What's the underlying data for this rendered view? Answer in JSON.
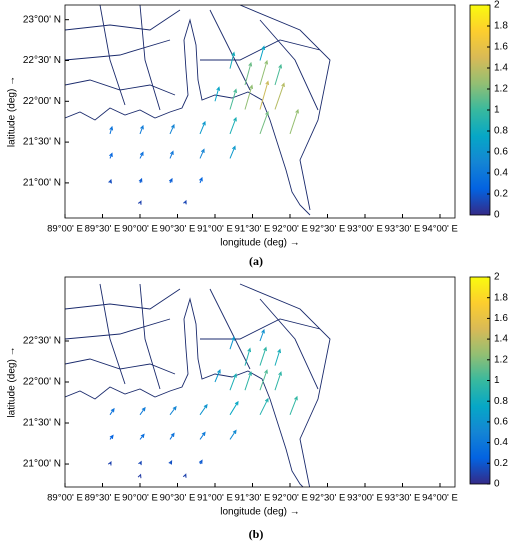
{
  "chart_data": [
    {
      "type": "quiver",
      "caption": "(a)",
      "xlabel": "longitude (deg) →",
      "ylabel": "latitude (deg) →",
      "xlim": [
        89,
        94.2
      ],
      "ylim": [
        20.57,
        23.18
      ],
      "xticks": [
        {
          "value": 89,
          "label": "89°00' E"
        },
        {
          "value": 89.5,
          "label": "89°30' E"
        },
        {
          "value": 90,
          "label": "90°00' E"
        },
        {
          "value": 90.5,
          "label": "90°30' E"
        },
        {
          "value": 91,
          "label": "91°00' E"
        },
        {
          "value": 91.5,
          "label": "91°30' E"
        },
        {
          "value": 92,
          "label": "92°00' E"
        },
        {
          "value": 92.5,
          "label": "92°30' E"
        },
        {
          "value": 93,
          "label": "93°00' E"
        },
        {
          "value": 93.5,
          "label": "93°30' E"
        },
        {
          "value": 94,
          "label": "94°00' E"
        }
      ],
      "yticks": [
        {
          "value": 21,
          "label": "21°00' N"
        },
        {
          "value": 21.5,
          "label": "21°30' N"
        },
        {
          "value": 22,
          "label": "22°00' N"
        },
        {
          "value": 22.5,
          "label": "22°30' N"
        },
        {
          "value": 23,
          "label": "23°00' N"
        }
      ],
      "clim": [
        0,
        2
      ],
      "cticks": [
        0,
        0.2,
        0.4,
        0.6,
        0.8,
        1,
        1.2,
        1.4,
        1.6,
        1.8,
        2
      ],
      "colormap": [
        "#352a87",
        "#0363e1",
        "#1485d4",
        "#06a7c6",
        "#38b99e",
        "#92bf73",
        "#d9ba56",
        "#fcce2e",
        "#f9fb0e"
      ],
      "vectors": {
        "x": [
          89.6,
          90.0,
          90.4,
          90.8,
          89.6,
          90.0,
          90.4,
          90.8,
          91.2,
          89.6,
          90.0,
          90.4,
          90.8,
          91.2,
          91.6,
          91.2,
          91.4,
          91.6,
          91.8,
          91.4,
          91.6,
          91.8,
          92.0,
          91.2,
          91.6,
          91.0,
          90.0,
          90.6
        ],
        "y": [
          21.0,
          21.0,
          21.0,
          21.0,
          21.3,
          21.3,
          21.3,
          21.3,
          21.3,
          21.6,
          21.6,
          21.6,
          21.6,
          21.6,
          21.6,
          21.9,
          21.9,
          21.9,
          21.9,
          22.2,
          22.2,
          22.2,
          21.6,
          22.4,
          22.5,
          22.0,
          20.75,
          20.75
        ],
        "u": [
          0.05,
          0.08,
          0.1,
          0.1,
          0.1,
          0.15,
          0.15,
          0.2,
          0.25,
          0.1,
          0.15,
          0.2,
          0.25,
          0.3,
          0.4,
          0.3,
          0.35,
          0.4,
          0.45,
          0.3,
          0.35,
          0.3,
          0.4,
          0.2,
          0.2,
          0.2,
          0.05,
          0.05
        ],
        "v": [
          0.15,
          0.2,
          0.2,
          0.25,
          0.25,
          0.3,
          0.35,
          0.45,
          0.6,
          0.35,
          0.4,
          0.45,
          0.6,
          0.8,
          1.1,
          1.0,
          1.2,
          1.4,
          1.3,
          1.1,
          1.2,
          1.0,
          1.2,
          0.8,
          0.7,
          0.7,
          0.1,
          0.12
        ]
      }
    },
    {
      "type": "quiver",
      "caption": "(b)",
      "xlabel": "longitude (deg) →",
      "ylabel": "latitude (deg) →",
      "xlim": [
        89,
        94.2
      ],
      "ylim": [
        20.72,
        23.28
      ],
      "xticks": [
        {
          "value": 89,
          "label": "89°00' E"
        },
        {
          "value": 89.5,
          "label": "89°30' E"
        },
        {
          "value": 90,
          "label": "90°00' E"
        },
        {
          "value": 90.5,
          "label": "90°30' E"
        },
        {
          "value": 91,
          "label": "91°00' E"
        },
        {
          "value": 91.5,
          "label": "91°30' E"
        },
        {
          "value": 92,
          "label": "92°00' E"
        },
        {
          "value": 92.5,
          "label": "92°30' E"
        },
        {
          "value": 93,
          "label": "93°00' E"
        },
        {
          "value": 93.5,
          "label": "93°30' E"
        },
        {
          "value": 94,
          "label": "94°00' E"
        }
      ],
      "yticks": [
        {
          "value": 21,
          "label": "21°00' N"
        },
        {
          "value": 21.5,
          "label": "21°30' N"
        },
        {
          "value": 22,
          "label": "22°00' N"
        },
        {
          "value": 22.5,
          "label": "22°30' N"
        }
      ],
      "clim": [
        0,
        2
      ],
      "cticks": [
        0,
        0.2,
        0.4,
        0.6,
        0.8,
        1,
        1.2,
        1.4,
        1.6,
        1.8,
        2
      ],
      "colormap": [
        "#352a87",
        "#0363e1",
        "#1485d4",
        "#06a7c6",
        "#38b99e",
        "#92bf73",
        "#d9ba56",
        "#fcce2e",
        "#f9fb0e"
      ],
      "vectors": {
        "x": [
          89.6,
          90.0,
          90.4,
          90.8,
          89.6,
          90.0,
          90.4,
          90.8,
          91.2,
          89.6,
          90.0,
          90.4,
          90.8,
          91.2,
          91.6,
          91.2,
          91.4,
          91.6,
          91.8,
          91.4,
          91.6,
          91.8,
          92.0,
          91.2,
          91.6,
          91.0,
          90.0,
          90.6
        ],
        "y": [
          21.0,
          21.0,
          21.0,
          21.0,
          21.3,
          21.3,
          21.3,
          21.3,
          21.3,
          21.6,
          21.6,
          21.6,
          21.6,
          21.6,
          21.6,
          21.9,
          21.9,
          21.9,
          21.9,
          22.2,
          22.2,
          22.2,
          21.6,
          22.4,
          22.5,
          22.0,
          20.85,
          20.85
        ],
        "u": [
          0.05,
          0.06,
          0.08,
          0.1,
          0.15,
          0.2,
          0.2,
          0.25,
          0.3,
          0.2,
          0.25,
          0.3,
          0.35,
          0.4,
          0.4,
          0.3,
          0.3,
          0.35,
          0.3,
          0.25,
          0.3,
          0.25,
          0.35,
          0.2,
          0.2,
          0.25,
          0.03,
          0.04
        ],
        "v": [
          0.1,
          0.12,
          0.15,
          0.18,
          0.2,
          0.25,
          0.3,
          0.35,
          0.45,
          0.3,
          0.35,
          0.4,
          0.5,
          0.65,
          0.8,
          0.8,
          0.9,
          1.0,
          0.9,
          0.85,
          0.9,
          0.8,
          0.9,
          0.6,
          0.55,
          0.6,
          0.08,
          0.1
        ]
      }
    }
  ]
}
